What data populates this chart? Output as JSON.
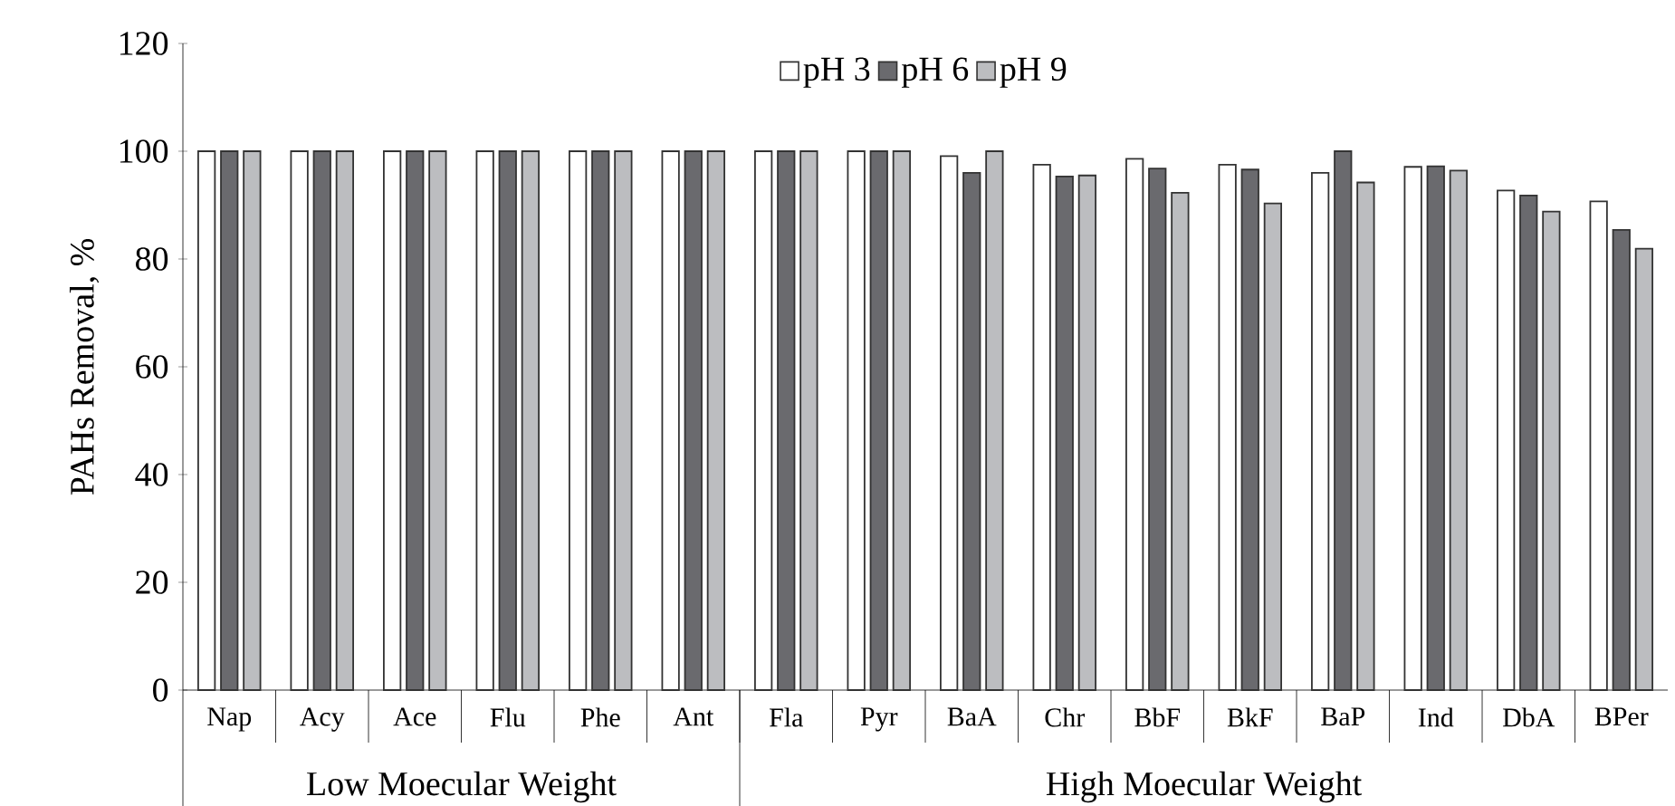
{
  "chart_data": {
    "type": "bar",
    "ylabel": "PAHs Removal, %",
    "categories": [
      "Nap",
      "Acy",
      "Ace",
      "Flu",
      "Phe",
      "Ant",
      "Fla",
      "Pyr",
      "BaA",
      "Chr",
      "BbF",
      "BkF",
      "BaP",
      "Ind",
      "DbA",
      "BPer"
    ],
    "series": [
      {
        "name": "pH 3",
        "color": "#ffffff",
        "values": [
          100,
          100,
          100,
          100,
          100,
          100,
          100,
          100,
          99.1,
          97.5,
          98.6,
          97.5,
          96.0,
          97.1,
          92.7,
          90.7
        ]
      },
      {
        "name": "pH 6",
        "color": "#6a6a6e",
        "values": [
          100,
          100,
          100,
          100,
          100,
          100,
          100,
          100,
          96.0,
          95.3,
          96.8,
          96.6,
          100,
          97.2,
          91.8,
          85.4
        ]
      },
      {
        "name": "pH 9",
        "color": "#bcbdc0",
        "values": [
          100,
          100,
          100,
          100,
          100,
          100,
          100,
          100,
          100,
          95.5,
          92.3,
          90.3,
          94.2,
          96.4,
          88.8,
          81.9
        ]
      }
    ],
    "ylim": [
      0,
      120
    ],
    "yticks": [
      0,
      20,
      40,
      60,
      80,
      100,
      120
    ],
    "legend": "top",
    "grid": false,
    "annotations": [
      "Low Moecular Weight",
      "High Moecular Weight"
    ]
  }
}
